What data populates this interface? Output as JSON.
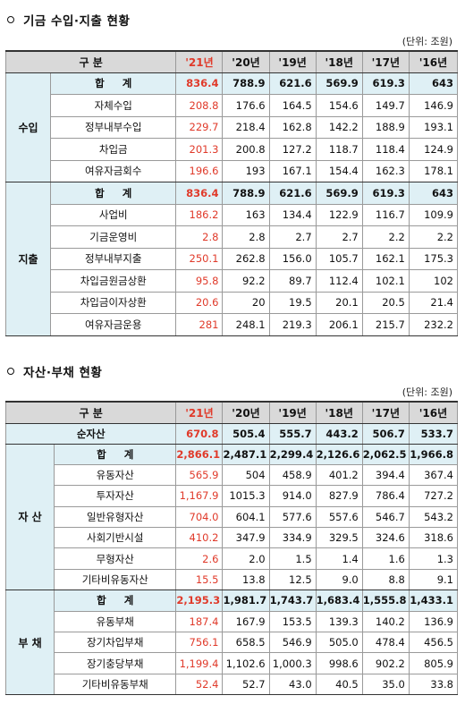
{
  "fund": {
    "title": "기금 수입·지출 현황",
    "unit": "(단위: 조원)",
    "header": {
      "label": "구  분",
      "years": [
        "'21년",
        "'20년",
        "'19년",
        "'18년",
        "'17년",
        "'16년"
      ]
    },
    "income": {
      "group": "수입",
      "rows": [
        {
          "label": "합  계",
          "values": [
            "836.4",
            "788.9",
            "621.6",
            "569.9",
            "619.3",
            "643"
          ]
        },
        {
          "label": "자체수입",
          "values": [
            "208.8",
            "176.6",
            "164.5",
            "154.6",
            "149.7",
            "146.9"
          ]
        },
        {
          "label": "정부내부수입",
          "values": [
            "229.7",
            "218.4",
            "162.8",
            "142.2",
            "188.9",
            "193.1"
          ]
        },
        {
          "label": "차입금",
          "values": [
            "201.3",
            "200.8",
            "127.2",
            "118.7",
            "118.4",
            "124.9"
          ]
        },
        {
          "label": "여유자금회수",
          "values": [
            "196.6",
            "193",
            "167.1",
            "154.4",
            "162.3",
            "178.1"
          ]
        }
      ]
    },
    "expense": {
      "group": "지출",
      "rows": [
        {
          "label": "합  계",
          "values": [
            "836.4",
            "788.9",
            "621.6",
            "569.9",
            "619.3",
            "643"
          ]
        },
        {
          "label": "사업비",
          "values": [
            "186.2",
            "163",
            "134.4",
            "122.9",
            "116.7",
            "109.9"
          ]
        },
        {
          "label": "기금운영비",
          "values": [
            "2.8",
            "2.8",
            "2.7",
            "2.7",
            "2.2",
            "2.2"
          ]
        },
        {
          "label": "정부내부지출",
          "values": [
            "250.1",
            "262.8",
            "156.0",
            "105.7",
            "162.1",
            "175.3"
          ]
        },
        {
          "label": "차입금원금상환",
          "values": [
            "95.8",
            "92.2",
            "89.7",
            "112.4",
            "102.1",
            "102"
          ]
        },
        {
          "label": "차입금이자상환",
          "values": [
            "20.6",
            "20",
            "19.5",
            "20.1",
            "20.5",
            "21.4"
          ]
        },
        {
          "label": "여유자금운용",
          "values": [
            "281",
            "248.1",
            "219.3",
            "206.1",
            "215.7",
            "232.2"
          ]
        }
      ]
    }
  },
  "assets": {
    "title": "자산·부채 현황",
    "unit": "(단위: 조원)",
    "header": {
      "label": "구  분",
      "years": [
        "'21년",
        "'20년",
        "'19년",
        "'18년",
        "'17년",
        "'16년"
      ]
    },
    "net": {
      "label": "순자산",
      "values": [
        "670.8",
        "505.4",
        "555.7",
        "443.2",
        "506.7",
        "533.7"
      ]
    },
    "asset": {
      "group": "자  산",
      "rows": [
        {
          "label": "합  계",
          "values": [
            "2,866.1",
            "2,487.1",
            "2,299.4",
            "2,126.6",
            "2,062.5",
            "1,966.8"
          ]
        },
        {
          "label": "유동자산",
          "values": [
            "565.9",
            "504",
            "458.9",
            "401.2",
            "394.4",
            "367.4"
          ]
        },
        {
          "label": "투자자산",
          "values": [
            "1,167.9",
            "1015.3",
            "914.0",
            "827.9",
            "786.4",
            "727.2"
          ]
        },
        {
          "label": "일반유형자산",
          "values": [
            "704.0",
            "604.1",
            "577.6",
            "557.6",
            "546.7",
            "543.2"
          ]
        },
        {
          "label": "사회기반시설",
          "values": [
            "410.2",
            "347.9",
            "334.9",
            "329.5",
            "324.6",
            "318.6"
          ]
        },
        {
          "label": "무형자산",
          "values": [
            "2.6",
            "2.0",
            "1.5",
            "1.4",
            "1.6",
            "1.3"
          ]
        },
        {
          "label": "기타비유동자산",
          "values": [
            "15.5",
            "13.8",
            "12.5",
            "9.0",
            "8.8",
            "9.1"
          ]
        }
      ]
    },
    "liability": {
      "group": "부  채",
      "rows": [
        {
          "label": "합  계",
          "values": [
            "2,195.3",
            "1,981.7",
            "1,743.7",
            "1,683.4",
            "1,555.8",
            "1,433.1"
          ]
        },
        {
          "label": "유동부채",
          "values": [
            "187.4",
            "167.9",
            "153.5",
            "139.3",
            "140.2",
            "136.9"
          ]
        },
        {
          "label": "장기차입부채",
          "values": [
            "756.1",
            "658.5",
            "546.9",
            "505.0",
            "478.4",
            "456.5"
          ]
        },
        {
          "label": "장기충당부채",
          "values": [
            "1,199.4",
            "1,102.6",
            "1,000.3",
            "998.6",
            "902.2",
            "805.9"
          ]
        },
        {
          "label": "기타비유동부채",
          "values": [
            "52.4",
            "52.7",
            "43.0",
            "40.5",
            "35.0",
            "33.8"
          ]
        }
      ]
    }
  }
}
